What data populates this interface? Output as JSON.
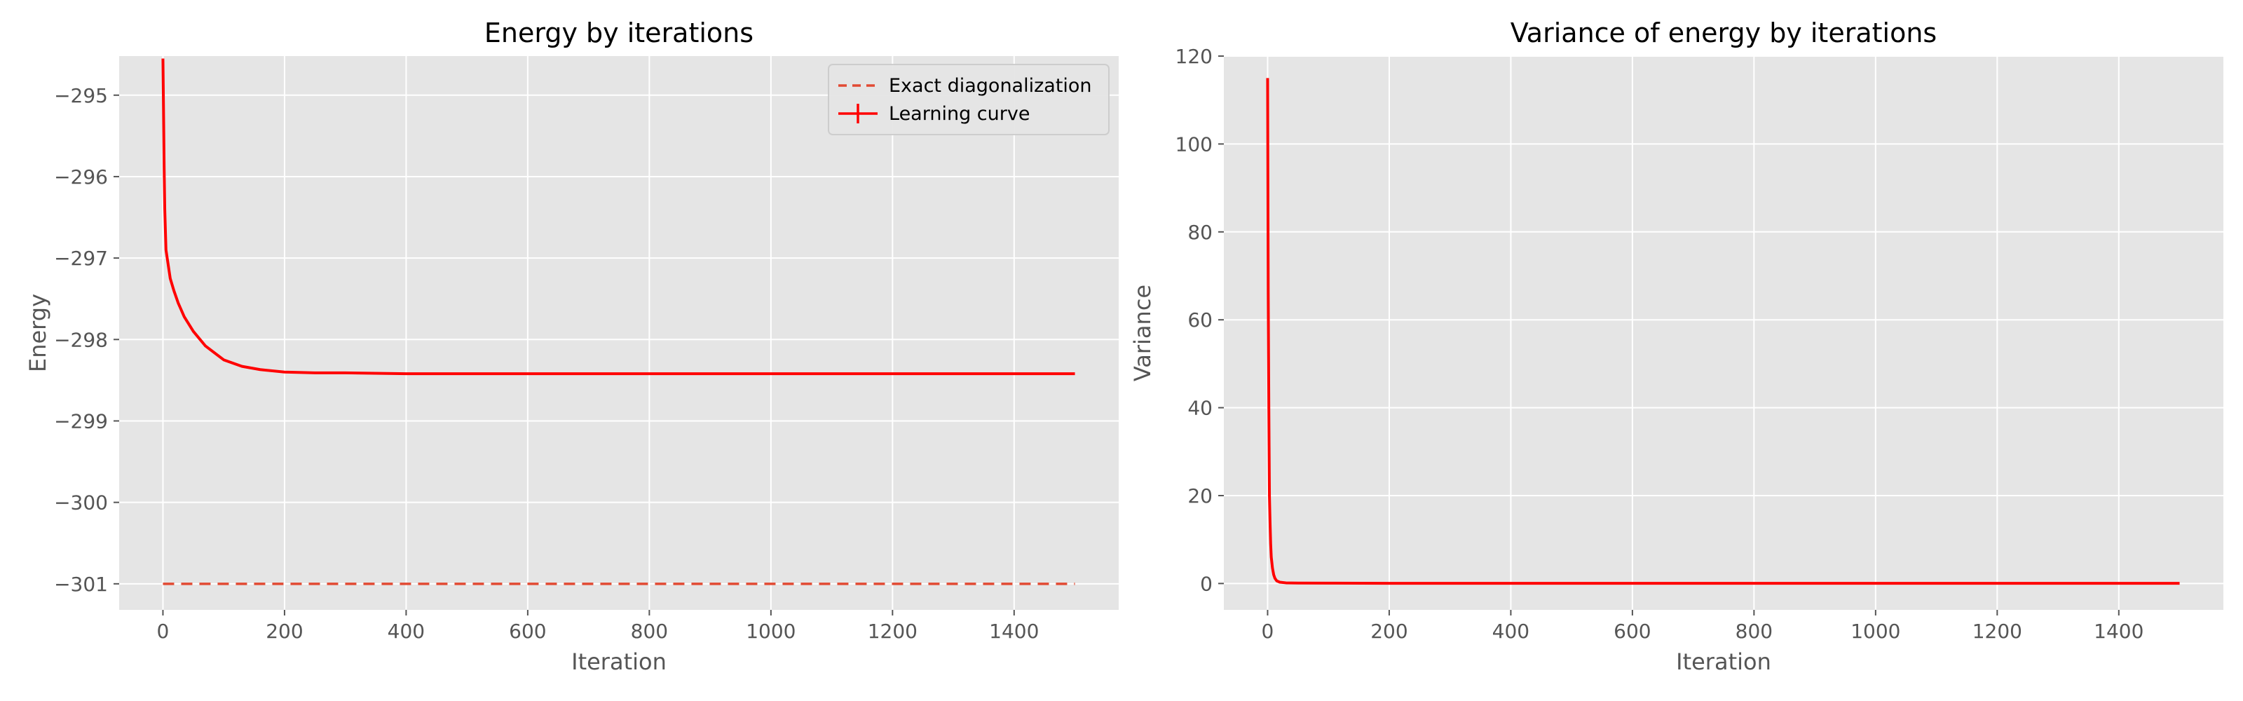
{
  "chart_data": [
    {
      "type": "line",
      "title": "Energy by iterations",
      "xlabel": "Iteration",
      "ylabel": "Energy",
      "xlim": [
        -72,
        1572
      ],
      "ylim": [
        -301.32,
        -294.52
      ],
      "xticks": [
        0,
        200,
        400,
        600,
        800,
        1000,
        1200,
        1400
      ],
      "xtick_labels": [
        "0",
        "200",
        "400",
        "600",
        "800",
        "1000",
        "1200",
        "1400"
      ],
      "yticks": [
        -295,
        -296,
        -297,
        -298,
        -299,
        -300,
        -301
      ],
      "ytick_labels": [
        "−295",
        "−296",
        "−297",
        "−298",
        "−299",
        "−300",
        "−301"
      ],
      "grid": true,
      "legend": "top-right",
      "series": [
        {
          "name": "Exact diagonalization",
          "style": "dashed",
          "color": "#e24a33",
          "x": [
            0,
            1500
          ],
          "y": [
            -301.0,
            -301.0
          ]
        },
        {
          "name": "Learning curve",
          "style": "solid",
          "color": "#ff0000",
          "x": [
            0,
            1,
            2,
            3,
            5,
            8,
            12,
            18,
            25,
            35,
            50,
            70,
            100,
            130,
            160,
            200,
            250,
            300,
            400,
            500,
            600,
            700,
            800,
            900,
            1000,
            1100,
            1200,
            1300,
            1400,
            1500
          ],
          "y": [
            -294.55,
            -295.2,
            -295.9,
            -296.4,
            -296.9,
            -297.05,
            -297.25,
            -297.4,
            -297.55,
            -297.72,
            -297.9,
            -298.08,
            -298.25,
            -298.33,
            -298.37,
            -298.4,
            -298.41,
            -298.41,
            -298.42,
            -298.42,
            -298.42,
            -298.42,
            -298.42,
            -298.42,
            -298.42,
            -298.42,
            -298.42,
            -298.42,
            -298.42,
            -298.42
          ]
        }
      ]
    },
    {
      "type": "line",
      "title": "Variance of energy by iterations",
      "xlabel": "Iteration",
      "ylabel": "Variance",
      "xlim": [
        -72,
        1572
      ],
      "ylim": [
        -6,
        120
      ],
      "xticks": [
        0,
        200,
        400,
        600,
        800,
        1000,
        1200,
        1400
      ],
      "xtick_labels": [
        "0",
        "200",
        "400",
        "600",
        "800",
        "1000",
        "1200",
        "1400"
      ],
      "yticks": [
        0,
        20,
        40,
        60,
        80,
        100,
        120
      ],
      "ytick_labels": [
        "0",
        "20",
        "40",
        "60",
        "80",
        "100",
        "120"
      ],
      "grid": true,
      "series": [
        {
          "color": "#ff0000",
          "x": [
            0,
            1,
            2,
            3,
            4,
            5,
            6,
            8,
            10,
            12,
            15,
            20,
            30,
            50,
            100,
            200,
            500,
            1000,
            1500
          ],
          "y": [
            115,
            66,
            40,
            20,
            14,
            9,
            6,
            3.5,
            2,
            1.2,
            0.6,
            0.3,
            0.15,
            0.1,
            0.08,
            0.05,
            0.05,
            0.05,
            0.05
          ]
        }
      ]
    }
  ],
  "colors": {
    "axes_bg": "#e5e5e5",
    "grid": "#ffffff",
    "tick_text": "#555555",
    "line": "#ff0000",
    "exact_line": "#e24a33"
  }
}
